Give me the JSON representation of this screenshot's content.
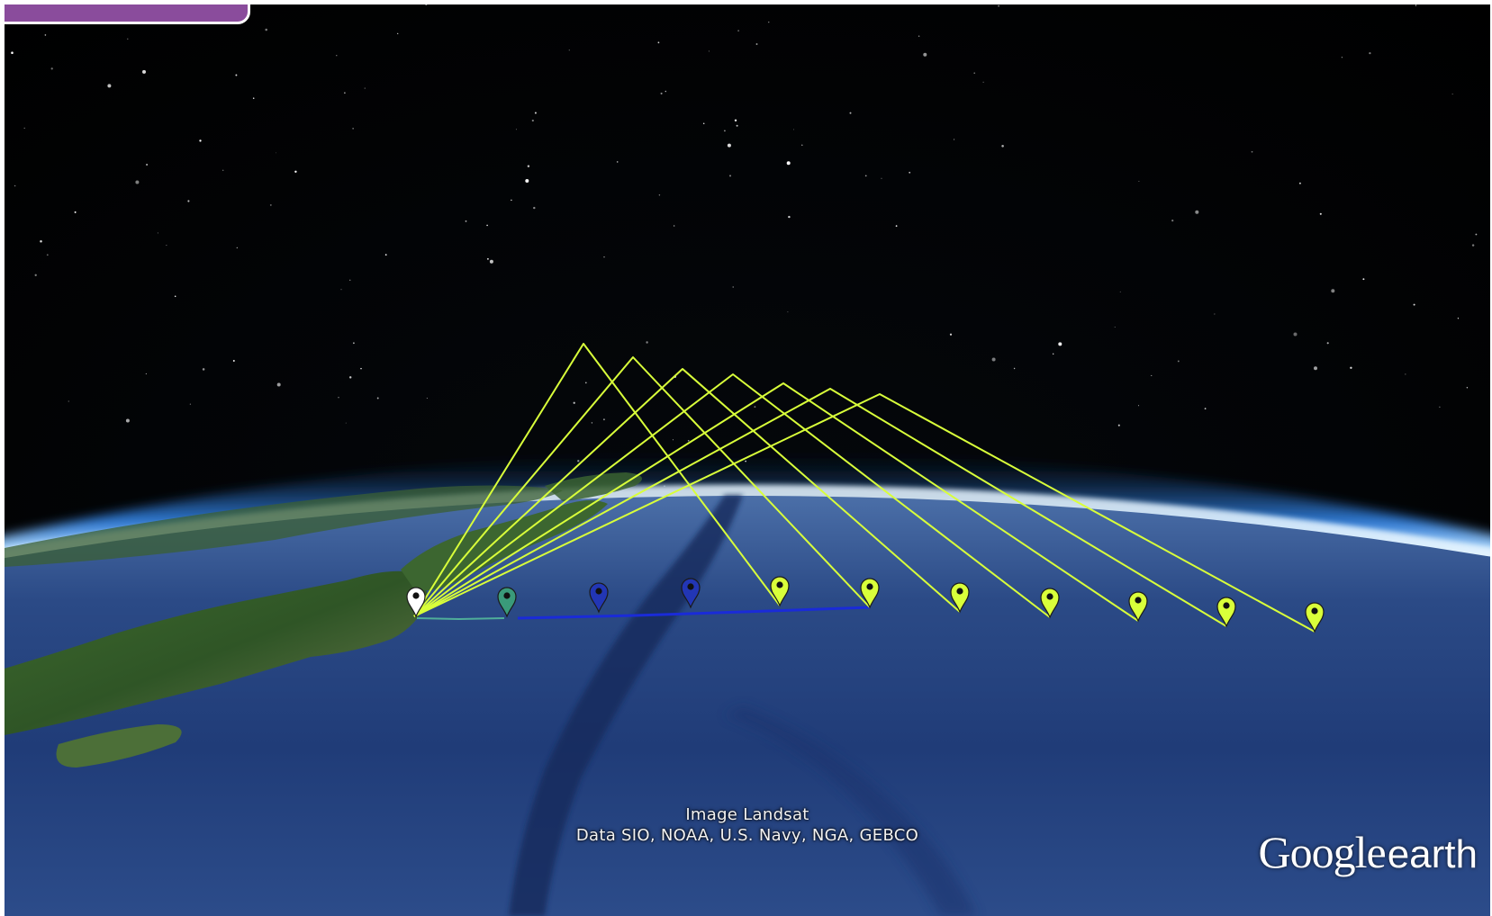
{
  "attribution": {
    "image_credit": "Image Landsat",
    "data_credit": "Data SIO, NOAA, U.S. Navy, NGA, GEBCO"
  },
  "logo": {
    "brand": "Google",
    "product": "earth"
  },
  "colors": {
    "trajectory": "#d9ff3a",
    "track": "#1a2bd8",
    "pin_origin": "#ffffff",
    "pin_teal": "#3a9a7a",
    "pin_blue": "#2236b5",
    "pin_yellow": "#d9ff3a"
  },
  "icons": [
    "placemark-pin-icon",
    "google-earth-logo"
  ]
}
